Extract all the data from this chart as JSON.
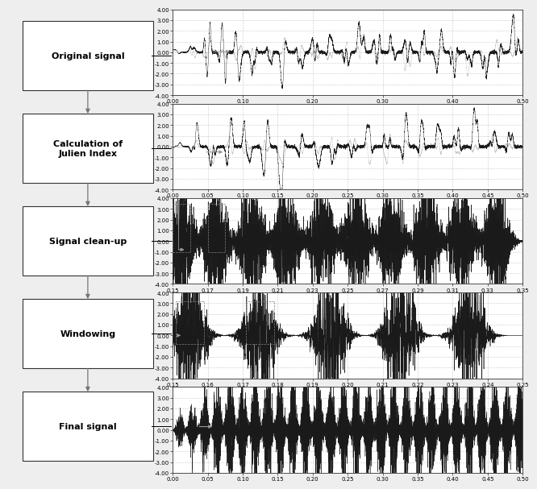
{
  "boxes": [
    {
      "label": "Original signal",
      "multiline": false
    },
    {
      "label": "Calculation of\nJulien Index",
      "multiline": true
    },
    {
      "label": "Signal clean-up",
      "multiline": false
    },
    {
      "label": "Windowing",
      "multiline": false
    },
    {
      "label": "Final signal",
      "multiline": false
    }
  ],
  "plots": [
    {
      "row": 0,
      "ylim": [
        -4.0,
        4.0
      ],
      "yticks": [
        4.0,
        3.0,
        2.0,
        1.0,
        0.0,
        -1.0,
        -2.0,
        -3.0,
        -4.0
      ],
      "xlim": [
        0.0,
        0.5
      ],
      "xticks": [
        0.0,
        0.1,
        0.2,
        0.3,
        0.4,
        0.5
      ],
      "xticklabels": [
        "0.00",
        "0.10",
        "0.20",
        "0.30",
        "0.40",
        "0.50"
      ]
    },
    {
      "row": 1,
      "ylim": [
        -4.0,
        4.0
      ],
      "yticks": [
        4.0,
        3.0,
        2.0,
        1.0,
        0.0,
        -1.0,
        -2.0,
        -3.0,
        -4.0
      ],
      "xlim": [
        0.0,
        0.5
      ],
      "xticks": [
        0.0,
        0.05,
        0.1,
        0.15,
        0.2,
        0.25,
        0.3,
        0.35,
        0.4,
        0.45,
        0.5
      ],
      "xticklabels": [
        "0.00",
        "0.05",
        "0.10",
        "0.15",
        "0.20",
        "0.25",
        "0.30",
        "0.35",
        "0.40",
        "0.45",
        "0.50"
      ]
    },
    {
      "row": 2,
      "ylim": [
        -4.0,
        4.0
      ],
      "yticks": [
        4.0,
        3.0,
        2.0,
        1.0,
        0.0,
        -1.0,
        -2.0,
        -3.0,
        -4.0
      ],
      "xlim": [
        0.15,
        0.35
      ],
      "xticks": [
        0.15,
        0.17,
        0.19,
        0.21,
        0.23,
        0.25,
        0.27,
        0.29,
        0.31,
        0.33,
        0.35
      ],
      "xticklabels": [
        "0.15",
        "0.17",
        "0.19",
        "0.21",
        "0.23",
        "0.25",
        "0.27",
        "0.29",
        "0.31",
        "0.33",
        "0.35"
      ]
    },
    {
      "row": 3,
      "ylim": [
        -4.0,
        4.0
      ],
      "yticks": [
        4.0,
        3.0,
        2.0,
        1.0,
        0.0,
        -1.0,
        -2.0,
        -3.0,
        -4.0
      ],
      "xlim": [
        0.15,
        0.25
      ],
      "xticks": [
        0.15,
        0.16,
        0.17,
        0.18,
        0.19,
        0.2,
        0.21,
        0.22,
        0.23,
        0.24,
        0.25
      ],
      "xticklabels": [
        "0.15",
        "0.16",
        "0.17",
        "0.18",
        "0.19",
        "0.20",
        "0.21",
        "0.22",
        "0.23",
        "0.24",
        "0.25"
      ]
    },
    {
      "row": 4,
      "ylim": [
        -4.0,
        4.0
      ],
      "yticks": [
        4.0,
        3.0,
        2.0,
        1.0,
        0.0,
        -1.0,
        -2.0,
        -3.0,
        -4.0
      ],
      "xlim": [
        0.0,
        0.5
      ],
      "xticks": [
        0.0,
        0.05,
        0.1,
        0.15,
        0.2,
        0.25,
        0.3,
        0.35,
        0.4,
        0.45,
        0.5
      ],
      "xticklabels": [
        "0.00",
        "0.05",
        "0.10",
        "0.15",
        "0.20",
        "0.25",
        "0.30",
        "0.35",
        "0.40",
        "0.45",
        "0.50"
      ]
    }
  ],
  "bg_color": "#eeeeee",
  "box_facecolor": "#ffffff",
  "box_edgecolor": "#333333",
  "arrow_color": "#777777",
  "signal_color": "#111111",
  "signal_gray": "#aaaaaa",
  "plot_bg": "#ffffff",
  "grid_color": "#bbbbbb",
  "tick_fontsize": 5,
  "label_fontsize": 8
}
